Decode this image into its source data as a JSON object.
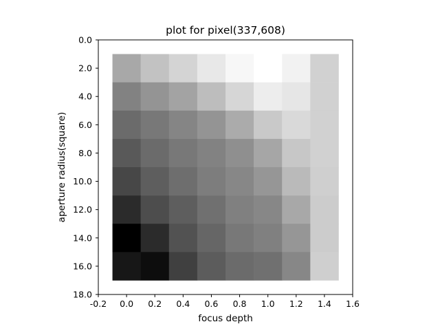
{
  "chart_data": {
    "type": "heatmap",
    "title": "plot for pixel(337,608)",
    "xlabel": "focus depth",
    "ylabel": "aperture radius(square)",
    "xlim": [
      -0.2,
      1.6
    ],
    "ylim": [
      18.0,
      0.0
    ],
    "xticks": [
      -0.2,
      0.0,
      0.2,
      0.4,
      0.6,
      0.8,
      1.0,
      1.2,
      1.4,
      1.6
    ],
    "xtick_labels": [
      "-0.2",
      "0.0",
      "0.2",
      "0.4",
      "0.6",
      "0.8",
      "1.0",
      "1.2",
      "1.4",
      "1.6"
    ],
    "yticks": [
      0,
      2,
      4,
      6,
      8,
      10,
      12,
      14,
      16,
      18
    ],
    "ytick_labels": [
      "0.0",
      "2.0",
      "4.0",
      "6.0",
      "8.0",
      "10.0",
      "12.0",
      "14.0",
      "16.0",
      "18.0"
    ],
    "x": [
      0.0,
      0.2,
      0.4,
      0.6,
      0.8,
      1.0,
      1.2,
      1.4
    ],
    "y": [
      2,
      4,
      6,
      8,
      10,
      12,
      14,
      16
    ],
    "cell_width": 0.2,
    "cell_height": 2,
    "colormap": "gray",
    "values": [
      [
        0.66,
        0.76,
        0.83,
        0.91,
        0.97,
        1.0,
        0.95,
        0.82
      ],
      [
        0.51,
        0.58,
        0.64,
        0.74,
        0.84,
        0.93,
        0.9,
        0.82
      ],
      [
        0.42,
        0.47,
        0.52,
        0.58,
        0.67,
        0.79,
        0.85,
        0.82
      ],
      [
        0.35,
        0.42,
        0.47,
        0.51,
        0.56,
        0.65,
        0.78,
        0.82
      ],
      [
        0.28,
        0.37,
        0.43,
        0.49,
        0.53,
        0.59,
        0.73,
        0.81
      ],
      [
        0.17,
        0.3,
        0.37,
        0.44,
        0.5,
        0.53,
        0.66,
        0.8
      ],
      [
        0.0,
        0.17,
        0.32,
        0.4,
        0.47,
        0.5,
        0.59,
        0.8
      ],
      [
        0.09,
        0.05,
        0.25,
        0.36,
        0.42,
        0.44,
        0.53,
        0.81
      ]
    ]
  }
}
